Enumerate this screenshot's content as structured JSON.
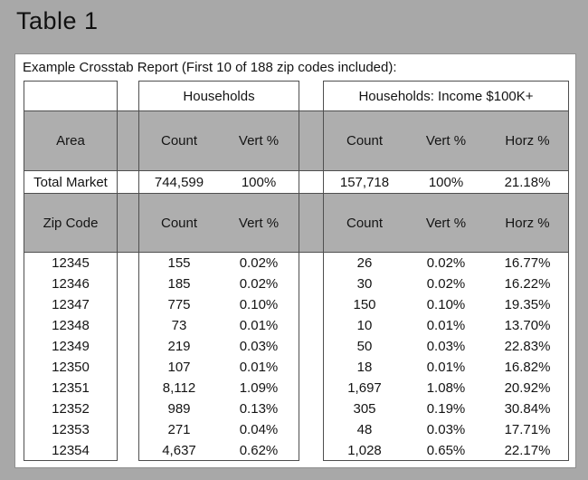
{
  "figure": {
    "title": "Table 1"
  },
  "report": {
    "caption": "Example Crosstab Report (First 10 of 188 zip codes included):"
  },
  "table": {
    "area_header": "Area",
    "zip_header": "Zip Code",
    "groups": {
      "households": {
        "label": "Households",
        "columns": [
          "Count",
          "Vert %"
        ]
      },
      "income": {
        "label": "Households: Income $100K+",
        "columns": [
          "Count",
          "Vert %",
          "Horz %"
        ]
      }
    },
    "total": {
      "label": "Total Market",
      "hh_count": "744,599",
      "hh_vert": "100%",
      "inc_count": "157,718",
      "inc_vert": "100%",
      "inc_horz": "21.18%"
    },
    "rows": [
      {
        "zip": "12345",
        "hh_count": "155",
        "hh_vert": "0.02%",
        "inc_count": "26",
        "inc_vert": "0.02%",
        "inc_horz": "16.77%"
      },
      {
        "zip": "12346",
        "hh_count": "185",
        "hh_vert": "0.02%",
        "inc_count": "30",
        "inc_vert": "0.02%",
        "inc_horz": "16.22%"
      },
      {
        "zip": "12347",
        "hh_count": "775",
        "hh_vert": "0.10%",
        "inc_count": "150",
        "inc_vert": "0.10%",
        "inc_horz": "19.35%"
      },
      {
        "zip": "12348",
        "hh_count": "73",
        "hh_vert": "0.01%",
        "inc_count": "10",
        "inc_vert": "0.01%",
        "inc_horz": "13.70%"
      },
      {
        "zip": "12349",
        "hh_count": "219",
        "hh_vert": "0.03%",
        "inc_count": "50",
        "inc_vert": "0.03%",
        "inc_horz": "22.83%"
      },
      {
        "zip": "12350",
        "hh_count": "107",
        "hh_vert": "0.01%",
        "inc_count": "18",
        "inc_vert": "0.01%",
        "inc_horz": "16.82%"
      },
      {
        "zip": "12351",
        "hh_count": "8,112",
        "hh_vert": "1.09%",
        "inc_count": "1,697",
        "inc_vert": "1.08%",
        "inc_horz": "20.92%"
      },
      {
        "zip": "12352",
        "hh_count": "989",
        "hh_vert": "0.13%",
        "inc_count": "305",
        "inc_vert": "0.19%",
        "inc_horz": "30.84%"
      },
      {
        "zip": "12353",
        "hh_count": "271",
        "hh_vert": "0.04%",
        "inc_count": "48",
        "inc_vert": "0.03%",
        "inc_horz": "17.71%"
      },
      {
        "zip": "12354",
        "hh_count": "4,637",
        "hh_vert": "0.62%",
        "inc_count": "1,028",
        "inc_vert": "0.65%",
        "inc_horz": "22.17%"
      }
    ]
  },
  "colors": {
    "outer_background": "#a8a8a8",
    "band_gray": "#aeaeae",
    "line": "#4f4f4f",
    "panel": "#ffffff",
    "text": "#141414"
  }
}
